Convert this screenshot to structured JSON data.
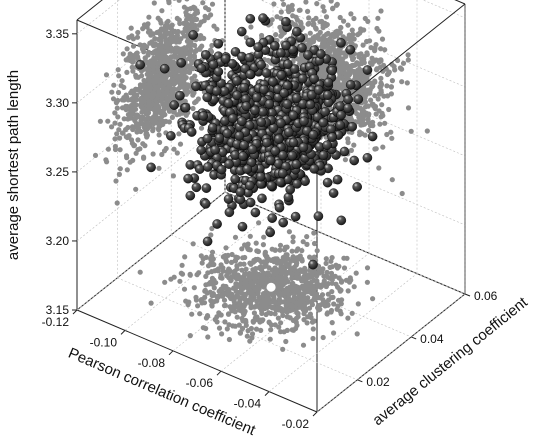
{
  "chart_data": {
    "type": "scatter",
    "view": "3d-perspective-box",
    "grid": true,
    "title": "",
    "axes": {
      "x": {
        "label": "Pearson correlation coefficient",
        "range": [
          -0.12,
          -0.02
        ],
        "ticks": [
          -0.12,
          -0.1,
          -0.08,
          -0.06,
          -0.04,
          -0.02
        ],
        "tick_labels": [
          "-0.12",
          "-0.10",
          "-0.08",
          "-0.06",
          "-0.04",
          "-0.02"
        ]
      },
      "y": {
        "label": "average clustering coefficient",
        "range": [
          0.005,
          0.06
        ],
        "ticks": [
          0.02,
          0.04,
          0.06
        ],
        "tick_labels": [
          "0.02",
          "0.04",
          "0.06"
        ]
      },
      "z": {
        "label": "average shortest path length",
        "range": [
          3.15,
          3.36
        ],
        "ticks": [
          3.15,
          3.2,
          3.25,
          3.3,
          3.35
        ],
        "tick_labels": [
          "3.15",
          "3.20",
          "3.25",
          "3.30",
          "3.35"
        ]
      }
    },
    "main_cloud": {
      "marker": "black sphere",
      "color": "#1a1a1a",
      "approx_count": 1000,
      "center": {
        "x": -0.075,
        "y": 0.037,
        "z": 3.268
      },
      "spread": {
        "x": 0.012,
        "y": 0.008,
        "z": 0.022
      }
    },
    "projections": [
      {
        "plane": "x-z (back wall, Pearson vs path length)",
        "color": "#8c8c8c",
        "highlight": {
          "x": -0.075,
          "z": 3.268,
          "color": "#ffffff"
        }
      },
      {
        "plane": "y-z (side wall, clustering vs path length)",
        "color": "#8c8c8c"
      },
      {
        "plane": "x-y (floor, Pearson vs clustering)",
        "color": "#8c8c8c",
        "highlight": {
          "x": -0.075,
          "y": 0.037,
          "color": "#ffffff"
        }
      }
    ]
  }
}
